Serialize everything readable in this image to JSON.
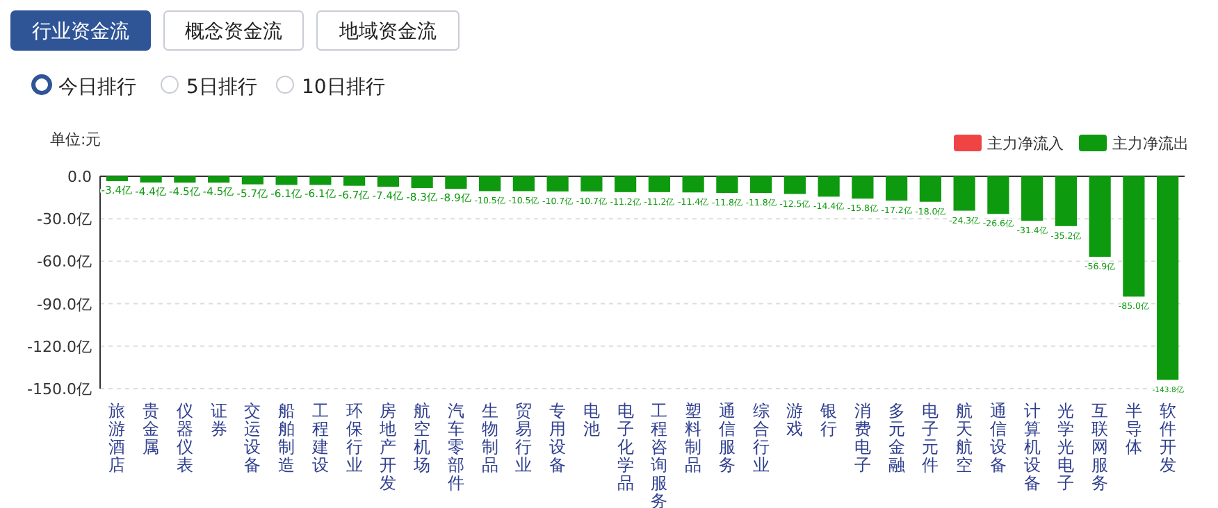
{
  "chart_data": {
    "type": "bar",
    "annotations": [
      "行业资金流",
      "概念资金流",
      "地域资金流",
      "今日排行",
      "5日排行",
      "10日排行"
    ],
    "ylabel": "单位:元",
    "categories": [
      "旅游酒店",
      "贵金属",
      "仪器仪表",
      "证券",
      "交运设备",
      "船舶制造",
      "工程建设",
      "环保行业",
      "房地产开发",
      "航空机场",
      "汽车零部件",
      "生物制品",
      "贸易行业",
      "专用设备",
      "电池",
      "电子化学品",
      "工程咨询服务",
      "塑料制品",
      "通信服务",
      "综合行业",
      "游戏",
      "银行",
      "消费电子",
      "多元金融",
      "电子元件",
      "航天航空",
      "通信设备",
      "计算机设备",
      "光学光电子",
      "互联网服务",
      "半导体",
      "软件开发"
    ],
    "series": [
      {
        "name": "主力净流入",
        "color": "#f04444",
        "values": [
          null,
          null,
          null,
          null,
          null,
          null,
          null,
          null,
          null,
          null,
          null,
          null,
          null,
          null,
          null,
          null,
          null,
          null,
          null,
          null,
          null,
          null,
          null,
          null,
          null,
          null,
          null,
          null,
          null,
          null,
          null,
          null
        ]
      },
      {
        "name": "主力净流出",
        "color": "#0e9a0e",
        "values": [
          -3.4,
          -4.4,
          -4.5,
          -4.5,
          -5.7,
          -6.1,
          -6.1,
          -6.7,
          -7.4,
          -8.3,
          -8.9,
          -10.5,
          -10.5,
          -10.7,
          -10.7,
          -11.2,
          -11.2,
          -11.4,
          -11.8,
          -11.8,
          -12.5,
          -14.4,
          -15.8,
          -17.2,
          -18.0,
          -24.3,
          -26.6,
          -31.4,
          -35.2,
          -56.9,
          -85.0,
          -143.8
        ],
        "value_labels": [
          "-3.4亿",
          "-4.4亿",
          "-4.5亿",
          "-4.5亿",
          "-5.7亿",
          "-6.1亿",
          "-6.1亿",
          "-6.7亿",
          "-7.4亿",
          "-8.3亿",
          "-8.9亿",
          "-10.5亿",
          "-10.5亿",
          "-10.7亿",
          "-10.7亿",
          "-11.2亿",
          "-11.2亿",
          "-11.4亿",
          "-11.8亿",
          "-11.8亿",
          "-12.5亿",
          "-14.4亿",
          "-15.8亿",
          "-17.2亿",
          "-18.0亿",
          "-24.3亿",
          "-26.6亿",
          "-31.4亿",
          "-35.2亿",
          "-56.9亿",
          "-85.0亿",
          "-143.8亿"
        ]
      }
    ],
    "ylim": [
      -150,
      0
    ],
    "yticks": [
      {
        "value": 0,
        "label": "0.0"
      },
      {
        "value": -30,
        "label": "-30.0亿"
      },
      {
        "value": -60,
        "label": "-60.0亿"
      },
      {
        "value": -90,
        "label": "-90.0亿"
      },
      {
        "value": -120,
        "label": "-120.0亿"
      },
      {
        "value": -150,
        "label": "-150.0亿"
      }
    ],
    "grid": "y",
    "legend": "top right"
  }
}
